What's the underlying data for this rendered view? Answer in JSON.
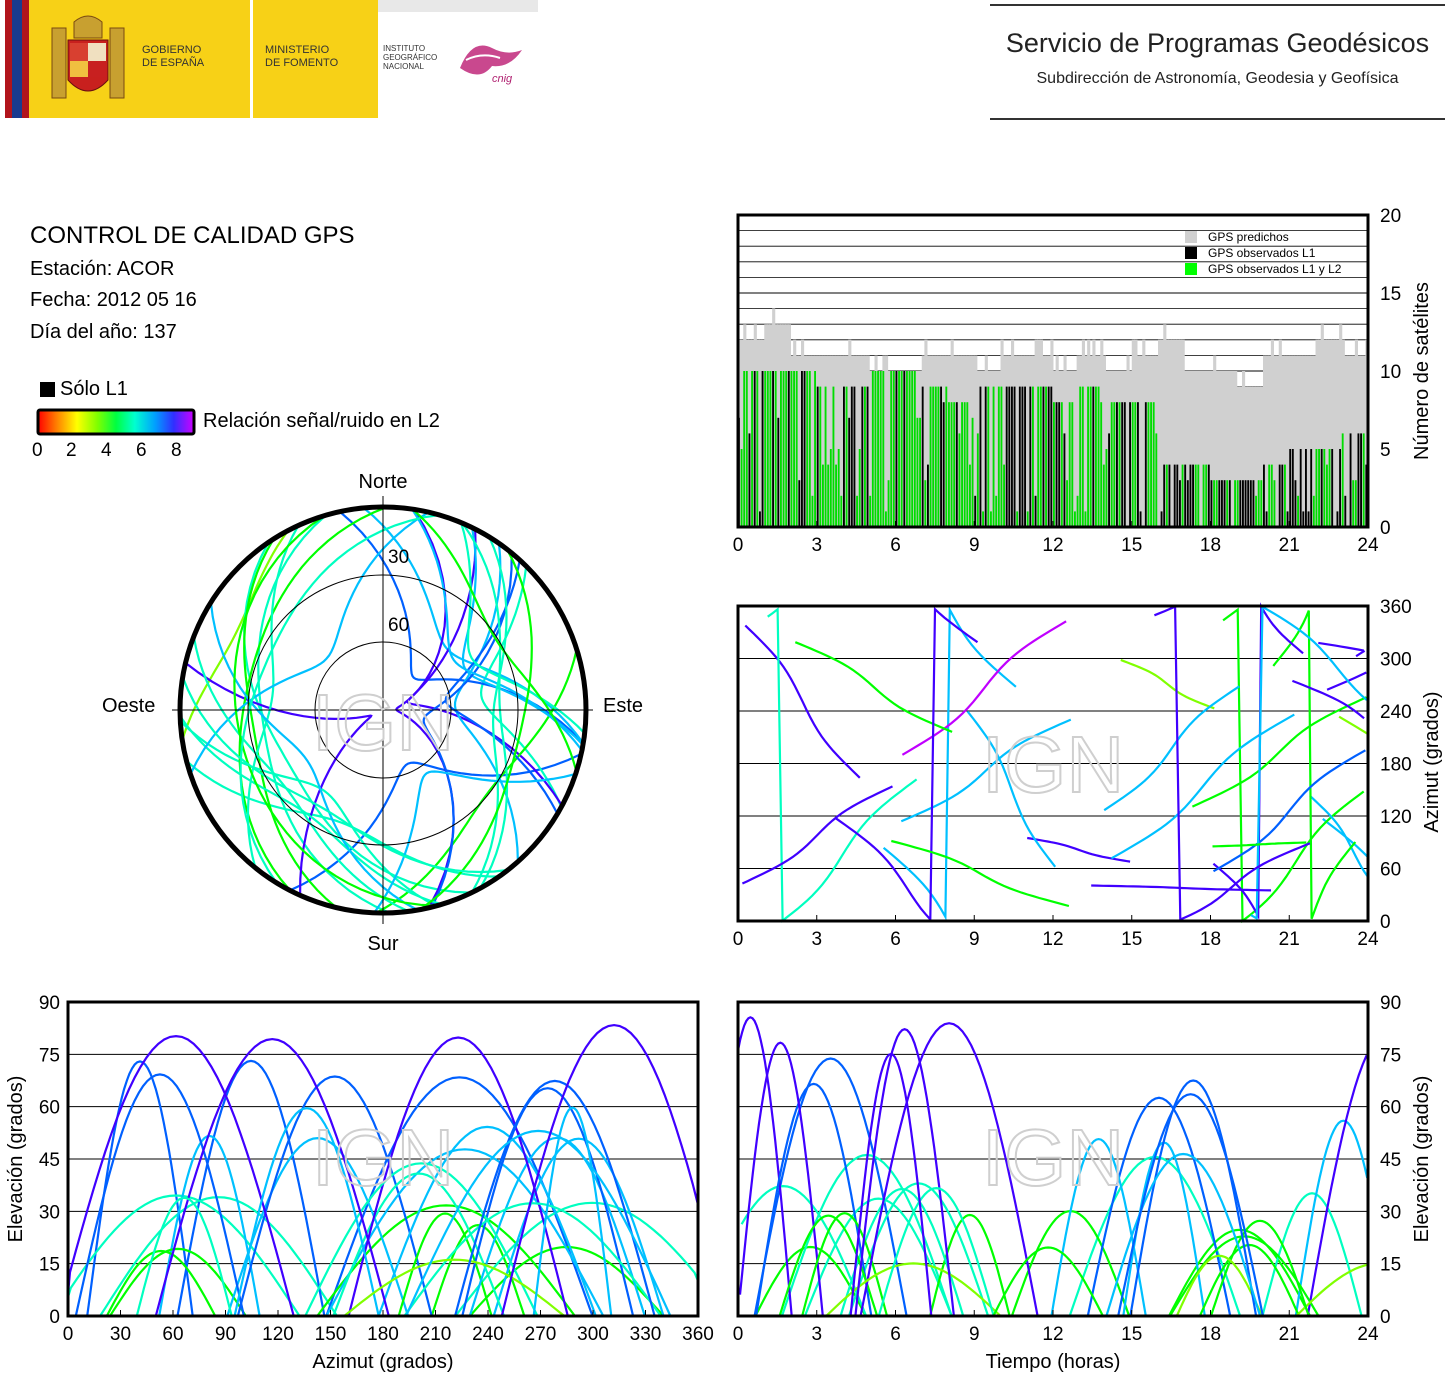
{
  "header": {
    "gov_line1": "GOBIERNO",
    "gov_line2": "DE ESPAÑA",
    "min_line1": "MINISTERIO",
    "min_line2": "DE FOMENTO",
    "ign_line1": "INSTITUTO",
    "ign_line2": "GEOGRÁFICO",
    "ign_line3": "NACIONAL",
    "cnig_logo": "cnig",
    "service_title": "Servicio de Programas Geodésicos",
    "service_subtitle": "Subdirección de Astronomía, Geodesia y Geofísica"
  },
  "info": {
    "title": "CONTROL DE CALIDAD GPS",
    "station": "Estación: ACOR",
    "date": "Fecha: 2012 05 16",
    "doy": "Día del año: 137"
  },
  "legend": {
    "l1_only": "Sólo L1",
    "snr_label": "Relación señal/ruido en L2",
    "snr_ticks": [
      "0",
      "2",
      "4",
      "6",
      "8"
    ],
    "colors": [
      "#ff0000",
      "#ff8000",
      "#ffff00",
      "#80ff00",
      "#00ff00",
      "#00ffc0",
      "#00c0ff",
      "#0060ff",
      "#4000ff",
      "#c000ff"
    ]
  },
  "watermark": "IGN",
  "chart_data": [
    {
      "id": "skyplot",
      "type": "scatter",
      "directions": {
        "north": "Norte",
        "south": "Sur",
        "east": "Este",
        "west": "Oeste"
      },
      "elevation_ring_labels": [
        "30",
        "60"
      ],
      "elevation_rings": [
        0,
        30,
        60
      ],
      "coordinate_system": "polar: azimuth 0-360 deg, elevation 0-90 deg",
      "series_note": "satellite tracks colored by L2 SNR"
    },
    {
      "id": "satellite-count",
      "type": "bar",
      "ylabel": "Número de satélites",
      "xlim": [
        0,
        24
      ],
      "ylim": [
        0,
        20
      ],
      "x_ticks": [
        "0",
        "3",
        "6",
        "9",
        "12",
        "15",
        "18",
        "21",
        "24"
      ],
      "y_ticks": [
        "0",
        "5",
        "10",
        "15",
        "20"
      ],
      "legend": [
        "GPS predichos",
        "GPS observados L1",
        "GPS observados L1 y L2"
      ],
      "legend_colors": [
        "#d0d0d0",
        "#000000",
        "#00ff00"
      ],
      "legend_position": "top-right",
      "series": [
        {
          "name": "GPS predichos",
          "x": [
            0,
            1,
            2,
            3,
            4,
            5,
            6,
            7,
            8,
            9,
            10,
            11,
            12,
            13,
            14,
            15,
            16,
            17,
            18,
            19,
            20,
            21,
            22,
            23,
            24
          ],
          "values": [
            12,
            13,
            11,
            11,
            11,
            10,
            10,
            11,
            11,
            10,
            11,
            11,
            10,
            11,
            10,
            11,
            12,
            10,
            10,
            9,
            11,
            11,
            12,
            11,
            11
          ]
        },
        {
          "name": "GPS observados L1 y L2",
          "x": [
            0,
            1,
            2,
            3,
            4,
            5,
            6,
            7,
            8,
            9,
            10,
            11,
            12,
            13,
            14,
            15,
            16,
            17,
            18,
            19,
            20,
            21,
            22,
            23,
            24
          ],
          "values": [
            10,
            10,
            10,
            9,
            9,
            10,
            10,
            9,
            8,
            9,
            9,
            9,
            8,
            9,
            8,
            8,
            4,
            4,
            3,
            3,
            4,
            5,
            5,
            6,
            4
          ]
        }
      ]
    },
    {
      "id": "azimuth-time",
      "type": "scatter",
      "ylabel": "Azimut (grados)",
      "xlim": [
        0,
        24
      ],
      "ylim": [
        0,
        360
      ],
      "x_ticks": [
        "0",
        "3",
        "6",
        "9",
        "12",
        "15",
        "18",
        "21",
        "24"
      ],
      "y_ticks": [
        "0",
        "60",
        "120",
        "180",
        "240",
        "300",
        "360"
      ]
    },
    {
      "id": "elevation-azimuth",
      "type": "scatter",
      "xlabel": "Azimut (grados)",
      "ylabel": "Elevación (grados)",
      "xlim": [
        0,
        360
      ],
      "ylim": [
        0,
        90
      ],
      "x_ticks": [
        "0",
        "30",
        "60",
        "90",
        "120",
        "150",
        "180",
        "210",
        "240",
        "270",
        "300",
        "330",
        "360"
      ],
      "y_ticks": [
        "0",
        "15",
        "30",
        "45",
        "60",
        "75",
        "90"
      ]
    },
    {
      "id": "elevation-time",
      "type": "scatter",
      "xlabel": "Tiempo (horas)",
      "ylabel": "Elevación (grados)",
      "xlim": [
        0,
        24
      ],
      "ylim": [
        0,
        90
      ],
      "x_ticks": [
        "0",
        "3",
        "6",
        "9",
        "12",
        "15",
        "18",
        "21",
        "24"
      ],
      "y_ticks": [
        "0",
        "15",
        "30",
        "45",
        "60",
        "75",
        "90"
      ]
    }
  ]
}
